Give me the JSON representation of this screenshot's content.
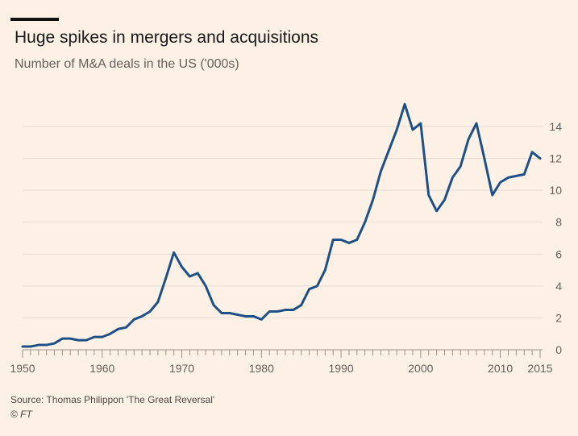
{
  "header": {
    "title": "Huge spikes in mergers and acquisitions",
    "subtitle": "Number of M&A deals in the US ('000s)"
  },
  "footer": {
    "source": "Source: Thomas Philippon 'The Great Reversal'",
    "credit": "© FT"
  },
  "colors": {
    "background": "#fdf1e5",
    "line": "#1f4f87",
    "grid": "#e6dbd1",
    "text": "#66605c"
  },
  "chart_data": {
    "type": "line",
    "title": "Huge spikes in mergers and acquisitions",
    "subtitle": "Number of M&A deals in the US ('000s)",
    "xlim": [
      1950,
      2015
    ],
    "ylim": [
      0,
      14
    ],
    "x_ticks": [
      1950,
      1960,
      1970,
      1980,
      1990,
      2000,
      2010,
      2015
    ],
    "y_ticks": [
      0,
      2,
      4,
      6,
      8,
      10,
      12,
      14
    ],
    "y_axis_position": "right",
    "grid": true,
    "legend": "none",
    "x": [
      1950,
      1951,
      1952,
      1953,
      1954,
      1955,
      1956,
      1957,
      1958,
      1959,
      1960,
      1961,
      1962,
      1963,
      1964,
      1965,
      1966,
      1967,
      1968,
      1969,
      1970,
      1971,
      1972,
      1973,
      1974,
      1975,
      1976,
      1977,
      1978,
      1979,
      1980,
      1981,
      1982,
      1983,
      1984,
      1985,
      1986,
      1987,
      1988,
      1989,
      1990,
      1991,
      1992,
      1993,
      1994,
      1995,
      1996,
      1997,
      1998,
      1999,
      2000,
      2001,
      2002,
      2003,
      2004,
      2005,
      2006,
      2007,
      2008,
      2009,
      2010,
      2011,
      2012,
      2013,
      2014,
      2015
    ],
    "series": [
      {
        "values": [
          0.2,
          0.2,
          0.3,
          0.3,
          0.4,
          0.7,
          0.7,
          0.6,
          0.6,
          0.8,
          0.8,
          1.0,
          1.3,
          1.4,
          1.9,
          2.1,
          2.4,
          3.0,
          4.5,
          6.1,
          5.2,
          4.6,
          4.8,
          4.0,
          2.8,
          2.3,
          2.3,
          2.2,
          2.1,
          2.1,
          1.9,
          2.4,
          2.4,
          2.5,
          2.5,
          2.8,
          3.8,
          4.0,
          5.0,
          6.9,
          6.9,
          6.7,
          6.9,
          8.0,
          9.4,
          11.2,
          12.5,
          13.8,
          15.4,
          13.8,
          14.2,
          9.7,
          8.7,
          9.4,
          10.8,
          11.5,
          13.2,
          14.2,
          12.0,
          9.7,
          10.5,
          10.8,
          10.9,
          11.0,
          12.4,
          12.0
        ]
      }
    ]
  }
}
